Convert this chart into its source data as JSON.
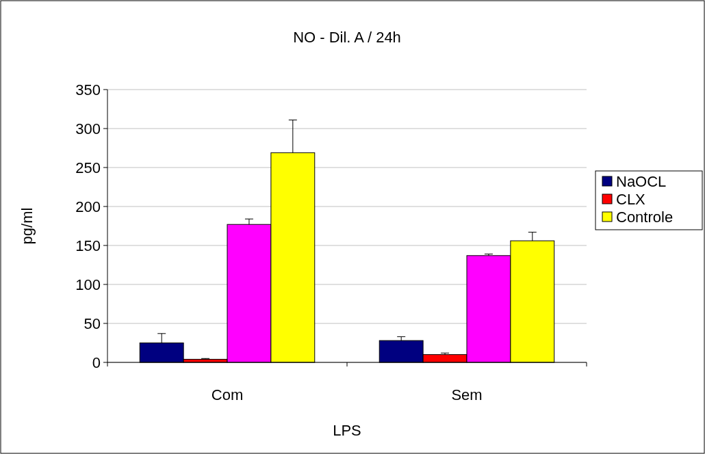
{
  "chart_data": {
    "type": "bar",
    "title": "NO - Dil. A / 24h",
    "xlabel": "LPS",
    "ylabel": "pg/ml",
    "categories": [
      "Com",
      "Sem"
    ],
    "series": [
      {
        "name": "NaOCL",
        "color": "#000080",
        "values": [
          25,
          28
        ],
        "errors": [
          [
            25,
            37
          ],
          [
            28,
            33
          ]
        ]
      },
      {
        "name": "CLX",
        "color": "#ff0000",
        "values": [
          4,
          10
        ],
        "errors": [
          [
            4,
            5
          ],
          [
            10,
            12
          ]
        ]
      },
      {
        "color": "#ff00ff",
        "values": [
          177,
          137
        ],
        "errors": [
          [
            177,
            184
          ],
          [
            137,
            139
          ]
        ]
      },
      {
        "name": "Controle",
        "color": "#ffff00",
        "values": [
          269,
          156
        ],
        "errors": [
          [
            269,
            311
          ],
          [
            156,
            167
          ]
        ]
      }
    ],
    "ylim": [
      0,
      350
    ],
    "yticks": [
      0,
      50,
      100,
      150,
      200,
      250,
      300,
      350
    ],
    "grid": "y",
    "legend": "right"
  }
}
